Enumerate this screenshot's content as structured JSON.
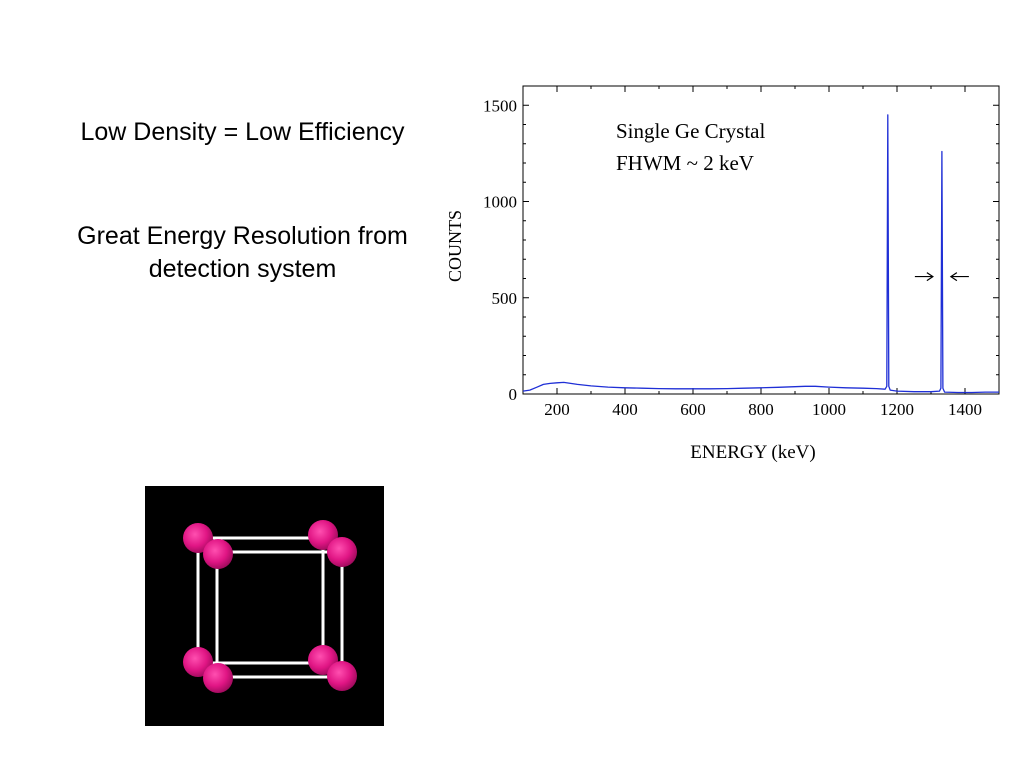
{
  "slide": {
    "heading_1": "Low Density = Low Efficiency",
    "heading_2_line1": "Great Energy Resolution from",
    "heading_2_line2": "detection system"
  },
  "chart_data": {
    "type": "line",
    "xlabel": "ENERGY (keV)",
    "ylabel": "COUNTS",
    "xlim": [
      100,
      1500
    ],
    "ylim": [
      0,
      1600
    ],
    "xticks": [
      200,
      400,
      600,
      800,
      1000,
      1200,
      1400
    ],
    "yticks": [
      0,
      500,
      1000,
      1500
    ],
    "grid": false,
    "color": "#1f2fd6",
    "annotations": [
      "Single Ge Crystal",
      "FHWM ~ 2 keV"
    ],
    "arrow_marker_y": 610,
    "series": [
      {
        "points": [
          [
            100,
            15
          ],
          [
            120,
            20
          ],
          [
            140,
            35
          ],
          [
            160,
            50
          ],
          [
            180,
            55
          ],
          [
            200,
            58
          ],
          [
            220,
            60
          ],
          [
            240,
            55
          ],
          [
            260,
            50
          ],
          [
            300,
            42
          ],
          [
            350,
            36
          ],
          [
            400,
            32
          ],
          [
            450,
            30
          ],
          [
            500,
            28
          ],
          [
            550,
            27
          ],
          [
            600,
            27
          ],
          [
            650,
            27
          ],
          [
            700,
            28
          ],
          [
            750,
            30
          ],
          [
            800,
            32
          ],
          [
            850,
            35
          ],
          [
            900,
            38
          ],
          [
            930,
            40
          ],
          [
            960,
            40
          ],
          [
            1000,
            36
          ],
          [
            1050,
            32
          ],
          [
            1100,
            30
          ],
          [
            1140,
            28
          ],
          [
            1165,
            25
          ],
          [
            1170,
            40
          ],
          [
            1173,
            1450
          ],
          [
            1176,
            40
          ],
          [
            1180,
            20
          ],
          [
            1200,
            15
          ],
          [
            1250,
            12
          ],
          [
            1300,
            12
          ],
          [
            1325,
            15
          ],
          [
            1329,
            30
          ],
          [
            1332,
            1260
          ],
          [
            1335,
            30
          ],
          [
            1340,
            10
          ],
          [
            1380,
            8
          ],
          [
            1420,
            8
          ],
          [
            1460,
            10
          ],
          [
            1500,
            10
          ]
        ]
      }
    ]
  }
}
